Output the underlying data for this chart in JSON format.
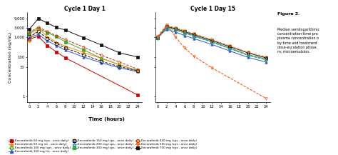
{
  "title1": "Cycle 1 Day 1",
  "title2": "Cycle 1 Day 15",
  "xlabel": "Time (hours)",
  "ylabel": "Concentration (ng/mL)",
  "xticks": [
    0,
    2,
    4,
    6,
    8,
    10,
    12,
    14,
    16,
    18,
    20,
    22,
    24
  ],
  "yticks": [
    1,
    30,
    100,
    1000,
    3000,
    9000
  ],
  "yticklabels": [
    "1",
    "30",
    "100",
    "1,000",
    "3,000",
    "9,000"
  ],
  "ylim_log": [
    0.5,
    18000
  ],
  "series_day1": [
    {
      "label": "Encorafenib 50 mg (cps - once daily)",
      "color": "#cc0000",
      "marker": "s",
      "fillstyle": "full",
      "linestyle": "-",
      "data": [
        [
          0,
          800
        ],
        [
          2,
          1100
        ],
        [
          4,
          380
        ],
        [
          6,
          180
        ],
        [
          8,
          90
        ],
        [
          24,
          1.2
        ]
      ]
    },
    {
      "label": "Encorafenib 100 mg (m - once daily)",
      "color": "#3355cc",
      "marker": "^",
      "fillstyle": "full",
      "linestyle": "-",
      "data": [
        [
          0,
          900
        ],
        [
          2,
          1400
        ],
        [
          4,
          650
        ],
        [
          6,
          380
        ],
        [
          8,
          220
        ],
        [
          12,
          100
        ],
        [
          16,
          50
        ],
        [
          20,
          28
        ],
        [
          24,
          18
        ]
      ]
    },
    {
      "label": "Encorafenib 300 mg (cps - once daily)",
      "color": "#33aa33",
      "marker": "s",
      "fillstyle": "full",
      "linestyle": "-",
      "data": [
        [
          0,
          1500
        ],
        [
          2,
          2800
        ],
        [
          4,
          1700
        ],
        [
          6,
          1050
        ],
        [
          8,
          580
        ],
        [
          12,
          230
        ],
        [
          16,
          85
        ],
        [
          20,
          40
        ],
        [
          24,
          20
        ]
      ]
    },
    {
      "label": "Encorafenib 700 mg (cps - once daily)",
      "color": "#111111",
      "marker": "s",
      "fillstyle": "full",
      "linestyle": "-",
      "data": [
        [
          0,
          2500
        ],
        [
          2,
          8800
        ],
        [
          4,
          5200
        ],
        [
          6,
          3100
        ],
        [
          8,
          2300
        ],
        [
          12,
          950
        ],
        [
          16,
          400
        ],
        [
          20,
          160
        ],
        [
          24,
          100
        ]
      ]
    },
    {
      "label": "Encorafenib 50 mg (m - once daily)",
      "color": "#ff8800",
      "marker": "^",
      "fillstyle": "full",
      "linestyle": "-",
      "data": [
        [
          0,
          680
        ],
        [
          2,
          2700
        ],
        [
          4,
          1100
        ],
        [
          6,
          550
        ],
        [
          8,
          350
        ],
        [
          12,
          170
        ],
        [
          24,
          20
        ]
      ]
    },
    {
      "label": "Encorafenib 150 mg (cps - once daily)",
      "color": "#111111",
      "marker": "s",
      "fillstyle": "none",
      "linestyle": "--",
      "data": [
        [
          0,
          1050
        ],
        [
          2,
          1900
        ],
        [
          4,
          870
        ],
        [
          6,
          490
        ],
        [
          8,
          280
        ],
        [
          12,
          130
        ],
        [
          16,
          60
        ],
        [
          20,
          32
        ],
        [
          24,
          20
        ]
      ]
    },
    {
      "label": "Encorafenib 450 mg (cps - once daily)",
      "color": "#cc3300",
      "marker": "o",
      "fillstyle": "none",
      "linestyle": "--",
      "data": [
        [
          0,
          1700
        ],
        [
          2,
          3300
        ],
        [
          4,
          1900
        ],
        [
          6,
          1200
        ],
        [
          8,
          750
        ],
        [
          12,
          320
        ],
        [
          16,
          120
        ],
        [
          20,
          55
        ],
        [
          24,
          24
        ]
      ]
    }
  ],
  "series_day15": [
    {
      "label": "Encorafenib 50 mg (m - once daily)",
      "color": "#ff4400",
      "marker": "v",
      "fillstyle": "none",
      "linestyle": "--",
      "data": [
        [
          0,
          1100
        ],
        [
          2,
          4200
        ],
        [
          4,
          1000
        ],
        [
          6,
          280
        ],
        [
          8,
          110
        ],
        [
          12,
          28
        ],
        [
          24,
          0.8
        ]
      ]
    },
    {
      "label": "Encorafenib 100 mg (m - once daily)",
      "color": "#3355cc",
      "marker": "^",
      "fillstyle": "full",
      "linestyle": "-",
      "data": [
        [
          0,
          1000
        ],
        [
          2,
          2500
        ],
        [
          4,
          1800
        ],
        [
          6,
          1200
        ],
        [
          8,
          850
        ],
        [
          12,
          430
        ],
        [
          16,
          200
        ],
        [
          20,
          95
        ],
        [
          24,
          55
        ]
      ]
    },
    {
      "label": "Encorafenib 300 mg (cps - once daily)",
      "color": "#33aa33",
      "marker": "s",
      "fillstyle": "full",
      "linestyle": "-",
      "data": [
        [
          0,
          900
        ],
        [
          2,
          3200
        ],
        [
          4,
          2500
        ],
        [
          6,
          1700
        ],
        [
          8,
          1200
        ],
        [
          12,
          600
        ],
        [
          16,
          280
        ],
        [
          20,
          130
        ],
        [
          24,
          80
        ]
      ]
    },
    {
      "label": "Encorafenib 700 mg (cps - once daily)",
      "color": "#111111",
      "marker": "s",
      "fillstyle": "full",
      "linestyle": "-",
      "data": [
        [
          0,
          950
        ],
        [
          2,
          3500
        ],
        [
          4,
          2700
        ],
        [
          6,
          1900
        ],
        [
          8,
          1350
        ],
        [
          12,
          680
        ],
        [
          16,
          330
        ],
        [
          20,
          160
        ],
        [
          24,
          90
        ]
      ]
    },
    {
      "label": "Encorafenib 100 mg (cps - once daily)",
      "color": "#33aa33",
      "marker": "o",
      "fillstyle": "none",
      "linestyle": "--",
      "data": [
        [
          0,
          850
        ],
        [
          2,
          3000
        ],
        [
          4,
          2300
        ],
        [
          6,
          1600
        ],
        [
          8,
          1100
        ],
        [
          12,
          560
        ],
        [
          16,
          260
        ],
        [
          20,
          120
        ],
        [
          24,
          70
        ]
      ]
    },
    {
      "label": "Encorafenib 200 mg (cps - once daily)",
      "color": "#4488cc",
      "marker": "^",
      "fillstyle": "none",
      "linestyle": "--",
      "data": [
        [
          0,
          900
        ],
        [
          2,
          3300
        ],
        [
          4,
          2600
        ],
        [
          6,
          1750
        ],
        [
          8,
          1200
        ],
        [
          12,
          590
        ],
        [
          16,
          270
        ],
        [
          20,
          125
        ],
        [
          24,
          75
        ]
      ]
    },
    {
      "label": "Encorafenib 550 mg (cps - once daily)",
      "color": "#ff6600",
      "marker": "v",
      "fillstyle": "none",
      "linestyle": "--",
      "data": [
        [
          0,
          1000
        ],
        [
          2,
          3800
        ],
        [
          4,
          3000
        ],
        [
          6,
          2100
        ],
        [
          8,
          1500
        ],
        [
          12,
          750
        ],
        [
          16,
          360
        ],
        [
          20,
          170
        ],
        [
          24,
          100
        ]
      ]
    }
  ],
  "legend_entries": [
    {
      "label": "Encorafenib 50 mg (cps - once daily)",
      "color": "#cc0000",
      "marker": "s",
      "linestyle": "-",
      "fillstyle": "full"
    },
    {
      "label": "Encorafenib 50 mg (m - once daily)",
      "color": "#ff8800",
      "marker": "^",
      "linestyle": "-",
      "fillstyle": "full"
    },
    {
      "label": "Encorafenib 100 mg (cps - once daily)",
      "color": "#33aa33",
      "marker": "o",
      "linestyle": "--",
      "fillstyle": "none"
    },
    {
      "label": "Encorafenib 100 mg (m - once daily)",
      "color": "#3355cc",
      "marker": "^",
      "linestyle": "-",
      "fillstyle": "full"
    },
    {
      "label": "Encorafenib 150 mg (cps - once daily)",
      "color": "#111111",
      "marker": "s",
      "linestyle": "--",
      "fillstyle": "none"
    },
    {
      "label": "Encorafenib 200 mg (cps - once daily)",
      "color": "#4488cc",
      "marker": "^",
      "linestyle": "--",
      "fillstyle": "none"
    },
    {
      "label": "Encorafenib 300 mg (cps - once daily)",
      "color": "#33aa33",
      "marker": "s",
      "linestyle": "-",
      "fillstyle": "full"
    },
    {
      "label": "Encorafenib 450 mg (cps - once daily)",
      "color": "#cc3300",
      "marker": "o",
      "linestyle": "--",
      "fillstyle": "none"
    },
    {
      "label": "Encorafenib 550 mg (cps - once daily)",
      "color": "#ff6600",
      "marker": "v",
      "linestyle": "--",
      "fillstyle": "none"
    },
    {
      "label": "Encorafenib 700 mg (cps - once daily)",
      "color": "#111111",
      "marker": "s",
      "linestyle": "-",
      "fillstyle": "full"
    }
  ],
  "caption_title": "Figure 2.",
  "caption_body": "Median semilogarithmic\nconcentration-time pro\nplasma concentration o\nby time and treatment\ndose-escalation phase.\nm, microemulsion.",
  "bg_color": "#ffffff"
}
